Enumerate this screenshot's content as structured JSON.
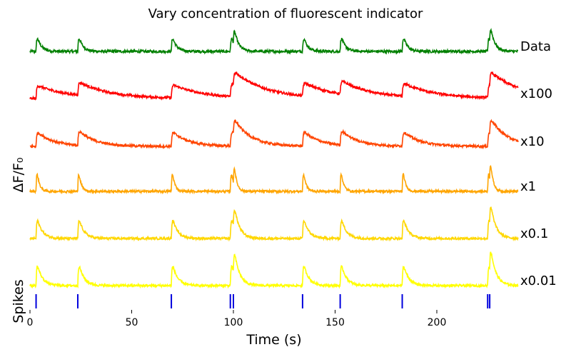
{
  "chart_data": {
    "type": "line",
    "title": "Vary concentration of fluorescent indicator",
    "xlabel": "Time (s)",
    "ylabel": "ΔF/F₀",
    "spikes_label": "Spikes",
    "xlim": [
      0,
      240
    ],
    "xticks": [
      0,
      50,
      100,
      150,
      200
    ],
    "grid": false,
    "spike_times": [
      3,
      23.5,
      69.5,
      98.5,
      100,
      134,
      152.5,
      183,
      225,
      226
    ],
    "spike_color": "#0000dd",
    "series": [
      {
        "name": "Data",
        "color": "#008000",
        "tau": 2.0,
        "amp": 0.5,
        "noise": 0.035
      },
      {
        "name": "x100",
        "color": "#ff0000",
        "tau": 15.0,
        "amp": 0.35,
        "noise": 0.03
      },
      {
        "name": "x10",
        "color": "#ff4500",
        "tau": 8.0,
        "amp": 0.4,
        "noise": 0.03
      },
      {
        "name": "x1",
        "color": "#ffa500",
        "tau": 1.2,
        "amp": 0.8,
        "noise": 0.03
      },
      {
        "name": "x0.1",
        "color": "#ffd700",
        "tau": 2.5,
        "amp": 0.65,
        "noise": 0.03
      },
      {
        "name": "x0.01",
        "color": "#ffff00",
        "tau": 2.5,
        "amp": 0.7,
        "noise": 0.03
      }
    ]
  }
}
